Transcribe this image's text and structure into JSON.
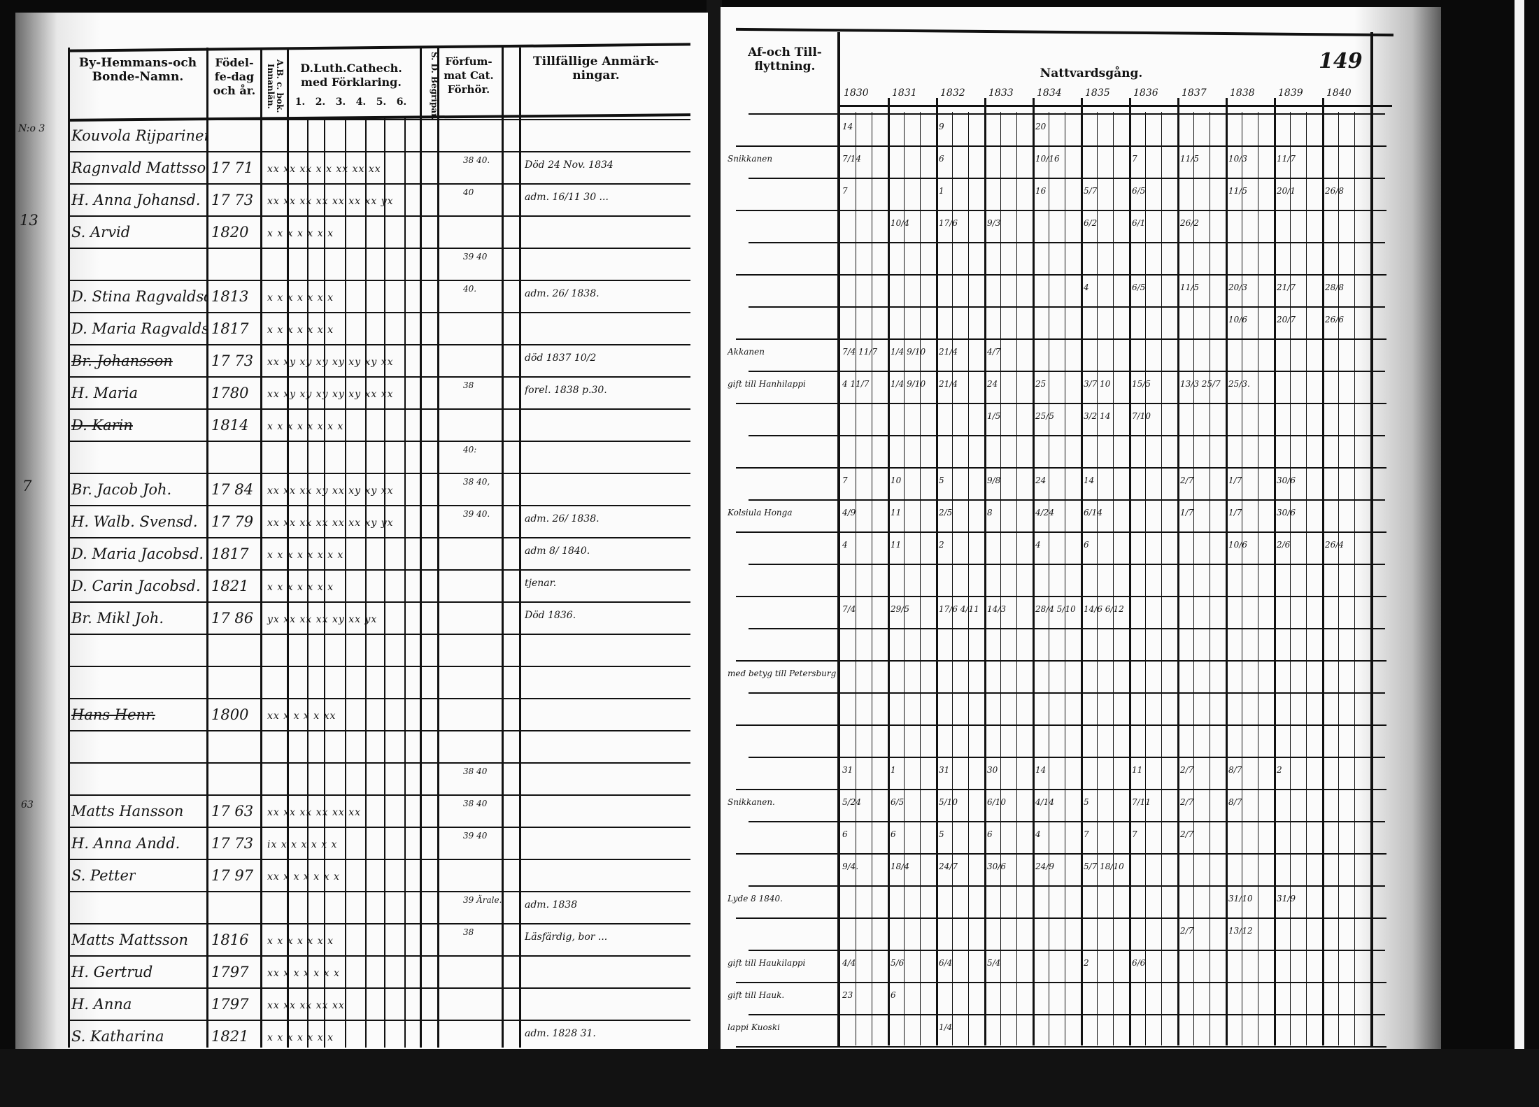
{
  "left": {
    "headers": {
      "name": "By-Hemmans-och Bonde-Namn.",
      "birth": "Födel-fe-dag och år.",
      "ab": "A.B. c. bok. Innanlän.",
      "catechism": "D.Luth.Cathech. med Förklaring.",
      "catechism_parts": [
        "1.",
        "2.",
        "3.",
        "4.",
        "5.",
        "6."
      ],
      "ds": "S. D. Begripar.",
      "missed": "Förfum-mat Cat. Förhör.",
      "remarks": "Tillfällige Anmärk-ningar."
    },
    "side_marks": [
      "N:o 3",
      "13",
      "7",
      "63"
    ],
    "rows": [
      {
        "name": "Kouvola Rijparinen",
        "birth": "",
        "marks": "",
        "missed": "",
        "remark": ""
      },
      {
        "name": "Ragnvald Mattsson",
        "birth": "17 71",
        "marks": "xx xx xx x x xx xx xx",
        "missed": "38 40.",
        "remark": "Död 24 Nov. 1834"
      },
      {
        "name": "H. Anna Johansd.",
        "birth": "17 73",
        "marks": "xx xx xx xx xx xx xx yx",
        "missed": "40",
        "remark": "adm. 16/11 30 ..."
      },
      {
        "name": "S. Arvid",
        "birth": "1820",
        "marks": "x x x x x x x",
        "missed": "",
        "remark": ""
      },
      {
        "name": "",
        "birth": "",
        "marks": "",
        "missed": "39 40",
        "remark": ""
      },
      {
        "name": "D. Stina Ragvaldsd.",
        "birth": "1813",
        "marks": "x x x x x x x",
        "missed": "40.",
        "remark": "adm. 26/ 1838."
      },
      {
        "name": "D. Maria Ragvaldsd.",
        "birth": "1817",
        "marks": "x x x x x x x",
        "missed": "",
        "remark": ""
      },
      {
        "name": "Br. Johansson",
        "birth": "17 73",
        "marks": "xx xy xy xy xy xy xy xx",
        "missed": "",
        "remark": "död 1837 10/2",
        "struck": true
      },
      {
        "name": "H. Maria",
        "birth": "1780",
        "marks": "xx xy xy xy xy xy xx xx",
        "missed": "38",
        "remark": "forel. 1838 p.30."
      },
      {
        "name": "D. Karin",
        "birth": "1814",
        "marks": "x x x x x x x x",
        "missed": "",
        "remark": "",
        "struck": true
      },
      {
        "name": "",
        "birth": "",
        "marks": "",
        "missed": "40:",
        "remark": ""
      },
      {
        "name": "Br. Jacob Joh.",
        "birth": "17 84",
        "marks": "xx xx xx xy xx xy xy xx",
        "missed": "38 40,",
        "remark": ""
      },
      {
        "name": "H. Walb. Svensd.",
        "birth": "17 79",
        "marks": "xx xx xx xx xx xx xy yx",
        "missed": "39 40.",
        "remark": "adm. 26/ 1838."
      },
      {
        "name": "D. Maria Jacobsd.",
        "birth": "1817",
        "marks": "x x x x x x x x",
        "missed": "",
        "remark": "adm 8/ 1840."
      },
      {
        "name": "D. Carin Jacobsd.",
        "birth": "1821",
        "marks": "x x x x x x x",
        "missed": "",
        "remark": "tjenar."
      },
      {
        "name": "Br. Mikl Joh.",
        "birth": "17 86",
        "marks": "yx xx xx xx xy xx yx",
        "missed": "",
        "remark": "Död 1836."
      },
      {
        "name": "",
        "birth": "",
        "marks": "",
        "missed": "",
        "remark": ""
      },
      {
        "name": "",
        "birth": "",
        "marks": "",
        "missed": "",
        "remark": ""
      },
      {
        "name": "Hans Henr.",
        "birth": "1800",
        "marks": "xx x x x x xx",
        "missed": "",
        "remark": "",
        "struck": true
      },
      {
        "name": "",
        "birth": "",
        "marks": "",
        "missed": "",
        "remark": ""
      },
      {
        "name": "",
        "birth": "",
        "marks": "",
        "missed": "38 40",
        "remark": ""
      },
      {
        "name": "Matts Hansson",
        "birth": "17 63",
        "marks": "xx xx xx xx xx xx",
        "missed": "38 40",
        "remark": ""
      },
      {
        "name": "H. Anna Andd.",
        "birth": "17 73",
        "marks": "ix x x x x x x",
        "missed": "39 40",
        "remark": ""
      },
      {
        "name": "S. Petter",
        "birth": "17 97",
        "marks": "xx x x x x x x",
        "missed": "",
        "remark": ""
      },
      {
        "name": "",
        "birth": "",
        "marks": "",
        "missed": "39 Ärale.",
        "remark": "adm. 1838"
      },
      {
        "name": "Matts Mattsson",
        "birth": "1816",
        "marks": "x x x x x x x",
        "missed": "38",
        "remark": "Läsfärdig, bor ..."
      },
      {
        "name": "H. Gertrud",
        "birth": "1797",
        "marks": "xx x x x x x x",
        "missed": "",
        "remark": ""
      },
      {
        "name": "H. Anna",
        "birth": "1797",
        "marks": "xx xx xx xx xx",
        "missed": "",
        "remark": ""
      },
      {
        "name": "S. Katharina",
        "birth": "1821",
        "marks": "x x x x x x x",
        "missed": "",
        "remark": "adm. 1828 31."
      }
    ]
  },
  "right": {
    "headers": {
      "moves": "Af-och Till-flyttning.",
      "attendance": "Nattvardsgång.",
      "page_number": "149",
      "years": [
        "1830",
        "1831",
        "1832",
        "1833",
        "1834",
        "1835",
        "1836",
        "1837",
        "1838",
        "1839",
        "1840"
      ]
    },
    "rows": [
      {
        "note": "",
        "vals": {
          "1830": "14",
          "1832": "9",
          "1834": "20"
        }
      },
      {
        "note": "Snikkanen",
        "vals": {
          "1830": "7/14",
          "1832": "6",
          "1834": "10/16",
          "1836": "7",
          "1837": "11/5",
          "1838": "10/3",
          "1839": "11/7"
        }
      },
      {
        "note": "",
        "vals": {
          "1830": "7",
          "1832": "1",
          "1834": "16",
          "1835": "5/7",
          "1836": "6/5",
          "1838": "11/5",
          "1839": "20/1",
          "1840": "26/8"
        }
      },
      {
        "note": "",
        "vals": {
          "1831": "10/4",
          "1832": "17/6",
          "1833": "9/3",
          "1835": "6/2",
          "1836": "6/1",
          "1837": "26/2"
        }
      },
      {
        "note": "",
        "vals": {}
      },
      {
        "note": "",
        "vals": {
          "1835": "4",
          "1836": "6/5",
          "1837": "11/5",
          "1838": "20/3",
          "1839": "21/7",
          "1840": "28/8"
        }
      },
      {
        "note": "",
        "vals": {
          "1838": "10/6",
          "1839": "20/7",
          "1840": "26/6"
        }
      },
      {
        "note": "Akkanen",
        "vals": {
          "1830": "7/4 11/7",
          "1831": "1/4 9/10",
          "1832": "21/4",
          "1833": "4/7"
        }
      },
      {
        "note": "gift till Hanhilappi",
        "vals": {
          "1830": "4 11/7",
          "1831": "1/4 9/10",
          "1832": "21/4",
          "1833": "24",
          "1834": "25",
          "1835": "3/7 10",
          "1836": "15/5",
          "1837": "13/3 25/7",
          "1838": "25/3."
        }
      },
      {
        "note": "",
        "vals": {
          "1833": "1/5",
          "1834": "25/5",
          "1835": "3/2 14",
          "1836": "7/10"
        }
      },
      {
        "note": "",
        "vals": {}
      },
      {
        "note": "",
        "vals": {
          "1830": "7",
          "1831": "10",
          "1832": "5",
          "1833": "9/8",
          "1834": "24",
          "1835": "14",
          "1837": "2/7",
          "1838": "1/7",
          "1839": "30/6"
        }
      },
      {
        "note": "Kolsiula Honga",
        "vals": {
          "1830": "4/9",
          "1831": "11",
          "1832": "2/5",
          "1833": "8",
          "1834": "4/24",
          "1835": "6/14",
          "1837": "1/7",
          "1838": "1/7",
          "1839": "30/6"
        }
      },
      {
        "note": "",
        "vals": {
          "1830": "4",
          "1831": "11",
          "1832": "2",
          "1834": "4",
          "1835": "6",
          "1838": "10/6",
          "1839": "2/6",
          "1840": "26/4"
        }
      },
      {
        "note": "",
        "vals": {}
      },
      {
        "note": "",
        "vals": {
          "1830": "7/4",
          "1831": "29/5",
          "1832": "17/6 4/11",
          "1833": "14/3",
          "1834": "28/4 5/10",
          "1835": "14/6 6/12"
        }
      },
      {
        "note": "",
        "vals": {}
      },
      {
        "note": "med betyg till Petersburg",
        "vals": {}
      },
      {
        "note": "",
        "vals": {}
      },
      {
        "note": "",
        "vals": {}
      },
      {
        "note": "",
        "vals": {
          "1830": "31",
          "1831": "1",
          "1832": "31",
          "1833": "30",
          "1834": "14",
          "1836": "11",
          "1837": "2/7",
          "1838": "8/7",
          "1839": "2"
        }
      },
      {
        "note": "Snikkanen.",
        "vals": {
          "1830": "5/24",
          "1831": "6/5",
          "1832": "5/10",
          "1833": "6/10",
          "1834": "4/14",
          "1835": "5",
          "1836": "7/11",
          "1837": "2/7",
          "1838": "8/7"
        }
      },
      {
        "note": "",
        "vals": {
          "1830": "6",
          "1831": "6",
          "1832": "5",
          "1833": "6",
          "1834": "4",
          "1835": "7",
          "1836": "7",
          "1837": "2/7"
        }
      },
      {
        "note": "",
        "vals": {
          "1830": "9/4.",
          "1831": "18/4",
          "1832": "24/7",
          "1833": "30/6",
          "1834": "24/9",
          "1835": "5/7 18/10"
        }
      },
      {
        "note": "Lyde 8 1840.",
        "vals": {
          "1838": "31/10",
          "1839": "31/9"
        }
      },
      {
        "note": "",
        "vals": {
          "1837": "2/7",
          "1838": "13/12"
        }
      },
      {
        "note": "gift till Haukilappi",
        "vals": {
          "1830": "4/4",
          "1831": "5/6",
          "1832": "6/4",
          "1833": "5/4",
          "1835": "2",
          "1836": "6/6"
        }
      },
      {
        "note": "gift till Hauk.",
        "vals": {
          "1830": "23",
          "1831": "6"
        }
      },
      {
        "note": "lappi Kuoski",
        "vals": {
          "1832": "1/4"
        }
      }
    ]
  }
}
